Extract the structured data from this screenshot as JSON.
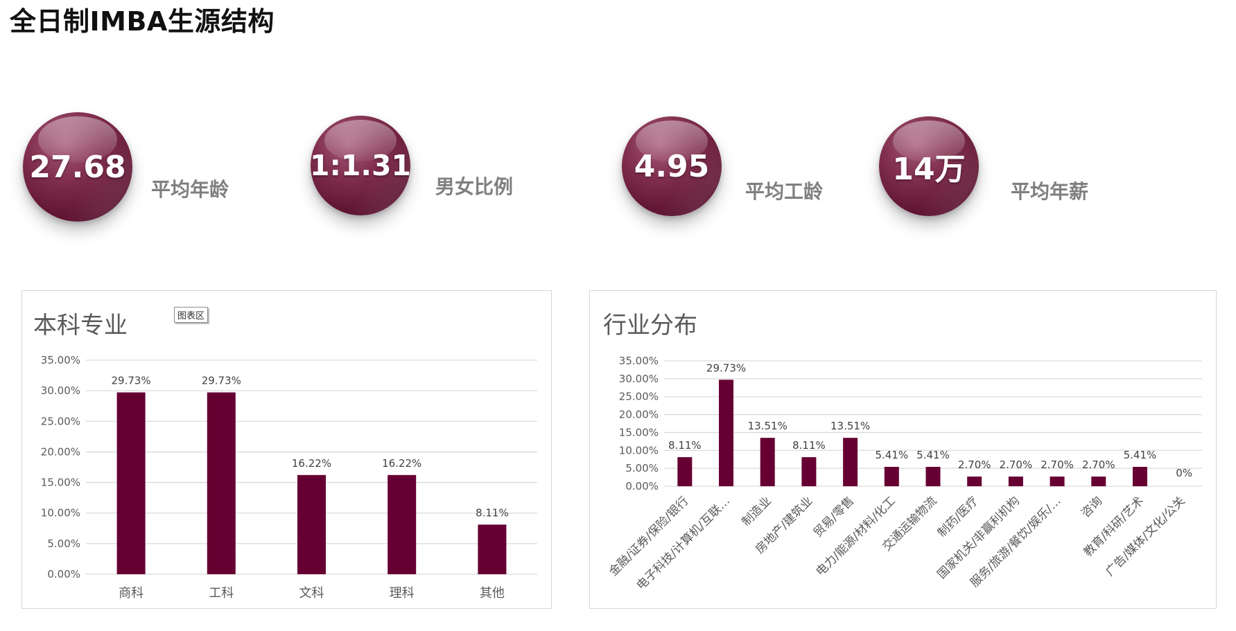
{
  "page": {
    "title": "全日制IMBA生源结构"
  },
  "stats": [
    {
      "value": "27.68",
      "label": "平均年龄"
    },
    {
      "value": "1:1.31",
      "label": "男女比例"
    },
    {
      "value": "4.95",
      "label": "平均工龄"
    },
    {
      "value": "14万",
      "label": "平均年薪"
    }
  ],
  "colors": {
    "bar": "#660033",
    "grid": "#d9d9d9",
    "axis_text": "#595959",
    "label_text": "#404040"
  },
  "chart_area_tag": "图表区",
  "chart_data": [
    {
      "type": "bar",
      "title": "本科专业",
      "categories": [
        "商科",
        "工科",
        "文科",
        "理科",
        "其他"
      ],
      "values": [
        29.73,
        29.73,
        16.22,
        16.22,
        8.11
      ],
      "value_labels": [
        "29.73%",
        "29.73%",
        "16.22%",
        "16.22%",
        "8.11%"
      ],
      "yticks": [
        "0.00%",
        "5.00%",
        "10.00%",
        "15.00%",
        "20.00%",
        "25.00%",
        "30.00%",
        "35.00%"
      ],
      "ylim": [
        0,
        35
      ],
      "xlabel": "",
      "ylabel": "",
      "grid": true
    },
    {
      "type": "bar",
      "title": "行业分布",
      "categories": [
        "金融/证券/保险/银行",
        "电子科技/计算机/互联…",
        "制造业",
        "房地产/建筑业",
        "贸易/零售",
        "电力/能源/材料/化工",
        "交通运输物流",
        "制药/医疗",
        "国家机关/非赢利机构",
        "服务/旅游/餐饮/娱乐/…",
        "咨询",
        "教育/科研/艺术",
        "广告/媒体/文化/公关"
      ],
      "values": [
        8.11,
        29.73,
        13.51,
        8.11,
        13.51,
        5.41,
        5.41,
        2.7,
        2.7,
        2.7,
        2.7,
        5.41,
        0
      ],
      "value_labels": [
        "8.11%",
        "29.73%",
        "13.51%",
        "8.11%",
        "13.51%",
        "5.41%",
        "5.41%",
        "2.70%",
        "2.70%",
        "2.70%",
        "2.70%",
        "5.41%",
        "0%"
      ],
      "yticks": [
        "0.00%",
        "5.00%",
        "10.00%",
        "15.00%",
        "20.00%",
        "25.00%",
        "30.00%",
        "35.00%"
      ],
      "ylim": [
        0,
        35
      ],
      "xlabel": "",
      "ylabel": "",
      "grid": true
    }
  ]
}
